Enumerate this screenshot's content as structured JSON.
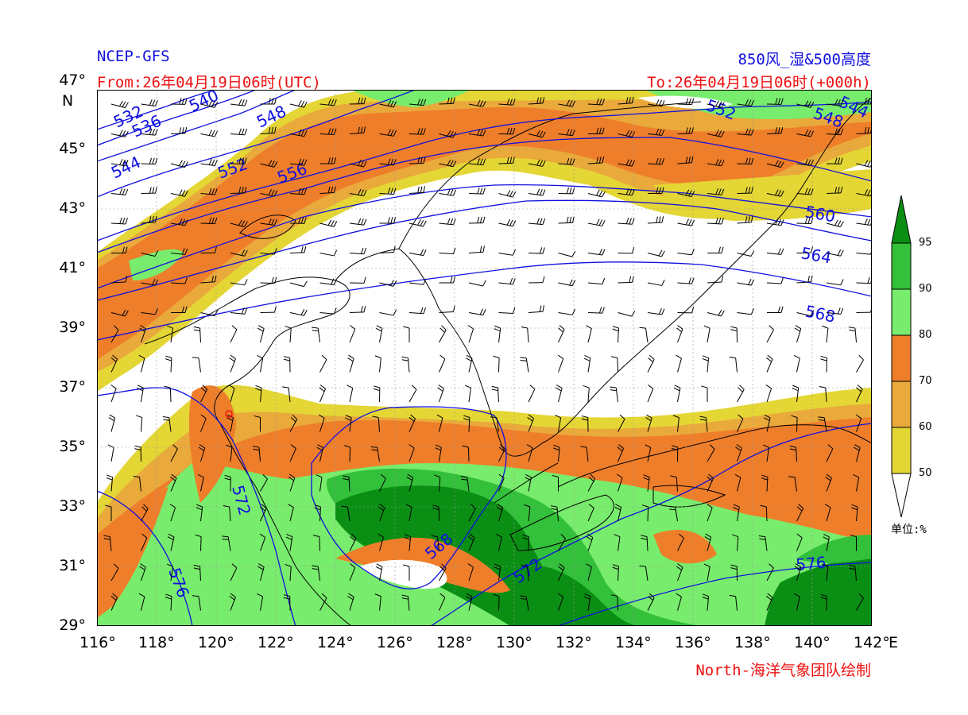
{
  "header": {
    "model": "NCEP-GFS",
    "product": "850风_湿&500高度",
    "from": "From:26年04月19日06时(UTC)",
    "to": "To:26年04月19日06时(+000h)"
  },
  "footer": {
    "credit": "North-海洋气象团队绘制"
  },
  "axes": {
    "lat_ticks": [
      "47°",
      "45°",
      "43°",
      "41°",
      "39°",
      "37°",
      "35°",
      "33°",
      "31°",
      "29°"
    ],
    "lat_unit": "N",
    "lon_ticks": [
      "116°",
      "118°",
      "120°",
      "122°",
      "124°",
      "126°",
      "128°",
      "130°",
      "132°",
      "134°",
      "136°",
      "138°",
      "140°",
      "142°"
    ],
    "lon_unit": "E",
    "lat_range": [
      29,
      47
    ],
    "lon_range": [
      116,
      142
    ]
  },
  "colorbar": {
    "levels": [
      "95",
      "90",
      "80",
      "70",
      "60",
      "50"
    ],
    "unit": "单位:%",
    "colors": [
      "#0a8f14",
      "#33c03a",
      "#78ec6c",
      "#ef7e2a",
      "#e9a93b",
      "#e4d634"
    ]
  },
  "contours": {
    "color": "#1010e0",
    "labels": [
      "532",
      "536",
      "540",
      "544",
      "548",
      "548",
      "552",
      "552",
      "556",
      "560",
      "564",
      "568",
      "568",
      "572",
      "572",
      "576",
      "576",
      "544"
    ]
  }
}
